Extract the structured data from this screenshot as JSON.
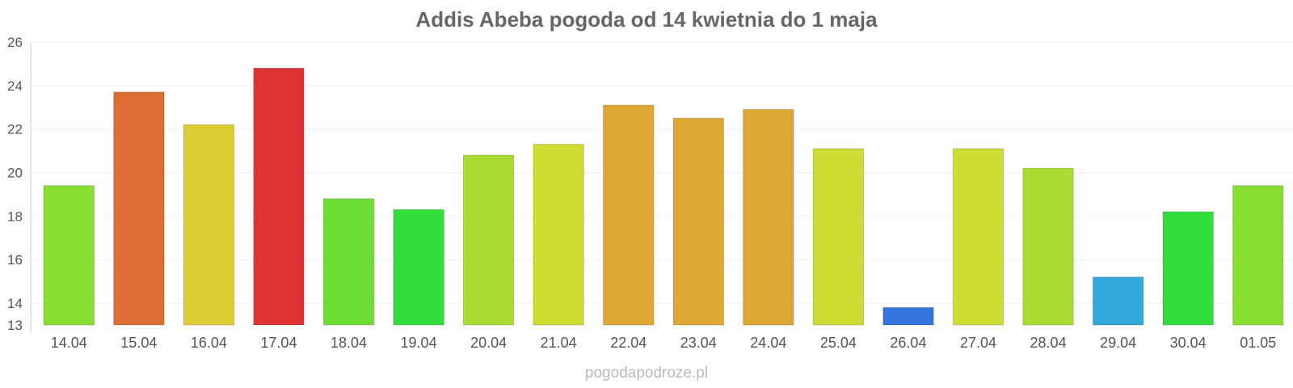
{
  "chart_data": {
    "type": "bar",
    "title": "Addis Abeba pogoda od 14 kwietnia do 1 maja",
    "xlabel": "",
    "ylabel": "",
    "ylim": [
      13,
      26
    ],
    "yticks": [
      13,
      14,
      16,
      18,
      20,
      22,
      24,
      26
    ],
    "grid": true,
    "legend": "none",
    "categories": [
      "14.04",
      "15.04",
      "16.04",
      "17.04",
      "18.04",
      "19.04",
      "20.04",
      "21.04",
      "22.04",
      "23.04",
      "24.04",
      "25.04",
      "26.04",
      "27.04",
      "28.04",
      "29.04",
      "30.04",
      "01.05"
    ],
    "values": [
      19.4,
      23.7,
      22.2,
      24.8,
      18.8,
      18.3,
      20.8,
      21.3,
      23.1,
      22.5,
      22.9,
      21.1,
      13.8,
      21.1,
      20.2,
      15.2,
      18.2,
      19.4
    ],
    "colors": [
      "#88dd33",
      "#dd6e33",
      "#dccb33",
      "#dd3333",
      "#6edd33",
      "#33dd3b",
      "#aadd33",
      "#cedd33",
      "#dda833",
      "#dda833",
      "#dda833",
      "#cedd33",
      "#3374dd",
      "#cedd33",
      "#aadd33",
      "#33a8dd",
      "#33dd3b",
      "#88dd33"
    ]
  },
  "watermark": "pogodapodroze.pl"
}
